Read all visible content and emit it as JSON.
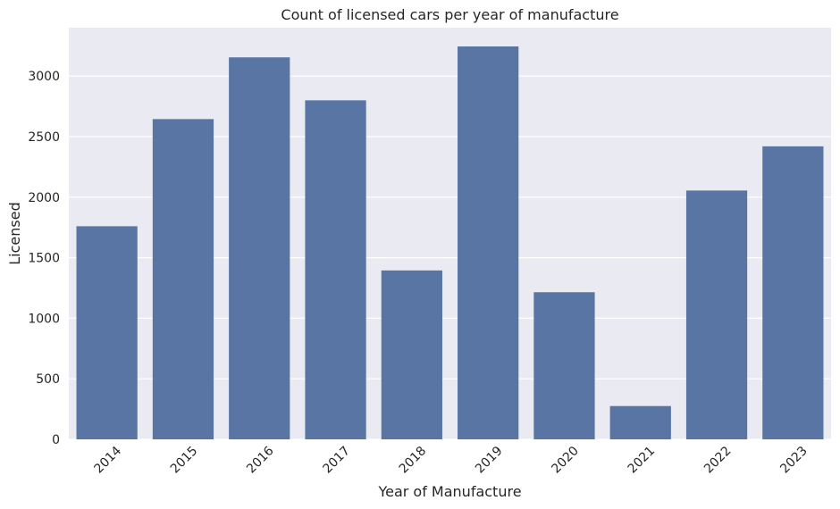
{
  "chart_data": {
    "type": "bar",
    "title": "Count of licensed cars per year of manufacture",
    "xlabel": "Year of Manufacture",
    "ylabel": "Licensed",
    "categories": [
      "2014",
      "2015",
      "2016",
      "2017",
      "2018",
      "2019",
      "2020",
      "2021",
      "2022",
      "2023"
    ],
    "values": [
      1760,
      2645,
      3155,
      2800,
      1395,
      3245,
      1215,
      275,
      2055,
      2420
    ],
    "ylim": [
      0,
      3400
    ],
    "yticks": [
      0,
      500,
      1000,
      1500,
      2000,
      2500,
      3000
    ],
    "grid": true,
    "legend": "none",
    "colors": {
      "bar": "#5875a4",
      "plot_background": "#eaeaf2",
      "grid": "#ffffff",
      "text": "#262626"
    }
  }
}
